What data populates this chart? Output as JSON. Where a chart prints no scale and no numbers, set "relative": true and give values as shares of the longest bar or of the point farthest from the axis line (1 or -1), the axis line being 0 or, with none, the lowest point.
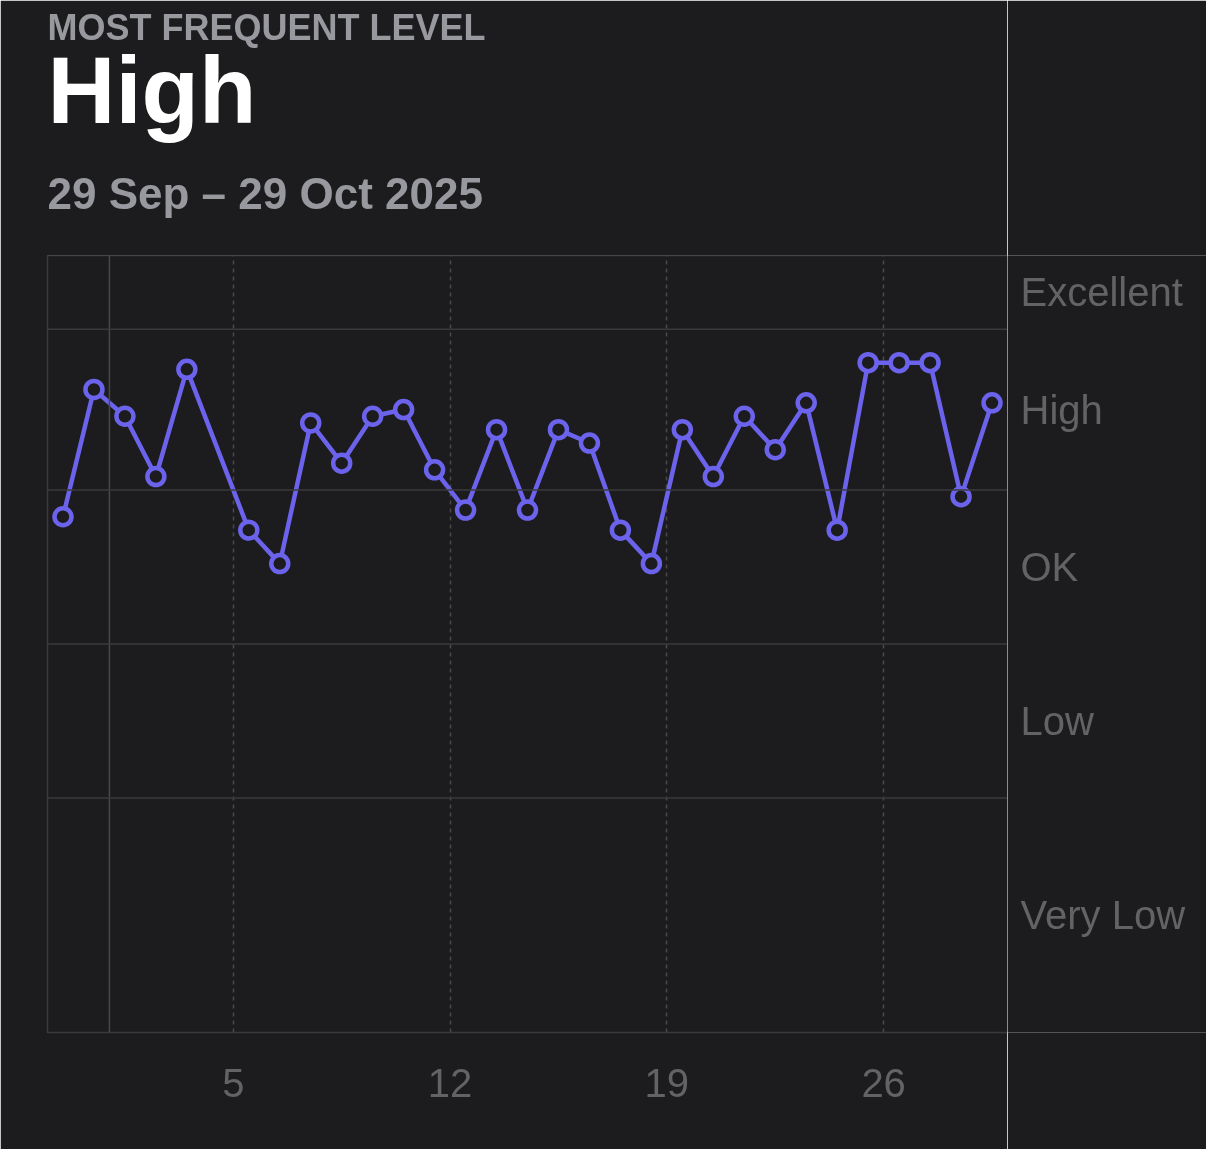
{
  "chart_data": {
    "type": "line",
    "relative": true,
    "title": "MOST FREQUENT LEVEL",
    "subtitle": "29 Sep – 29 Oct 2025",
    "annotations": [
      "High",
      "Excellent",
      "High",
      "OK",
      "Low",
      "Very Low"
    ],
    "x": [
      "2025-09-29T12:00",
      "2025-09-30T12:00",
      "2025-10-01T12:00",
      "2025-10-02T12:00",
      "2025-10-03T12:00",
      "2025-10-05T12:00",
      "2025-10-06T12:00",
      "2025-10-07T12:00",
      "2025-10-08T12:00",
      "2025-10-09T12:00",
      "2025-10-10T12:00",
      "2025-10-11T12:00",
      "2025-10-12T12:00",
      "2025-10-13T12:00",
      "2025-10-14T12:00",
      "2025-10-15T12:00",
      "2025-10-16T12:00",
      "2025-10-17T12:00",
      "2025-10-18T12:00",
      "2025-10-19T12:00",
      "2025-10-20T12:00",
      "2025-10-21T12:00",
      "2025-10-22T12:00",
      "2025-10-23T12:00",
      "2025-10-24T12:00",
      "2025-10-25T12:00",
      "2025-10-26T12:00",
      "2025-10-27T12:00",
      "2025-10-28T12:00",
      "2025-10-29T12:00"
    ],
    "series": [
      {
        "color": "#6c63ec",
        "values": [
          0.77,
          0.96,
          0.92,
          0.83,
          0.99,
          0.75,
          0.7,
          0.91,
          0.85,
          0.92,
          0.93,
          0.84,
          0.78,
          0.9,
          0.78,
          0.9,
          0.88,
          0.75,
          0.7,
          0.9,
          0.83,
          0.92,
          0.87,
          0.94,
          0.75,
          1,
          1,
          1,
          0.8,
          0.94
        ]
      }
    ],
    "xlim": [
      "2025-09-29",
      "2025-10-30"
    ],
    "xticks": [
      {
        "value": "2025-10-05",
        "label": "5"
      },
      {
        "value": "2025-10-12",
        "label": "12"
      },
      {
        "value": "2025-10-19",
        "label": "19"
      },
      {
        "value": "2025-10-26",
        "label": "26"
      }
    ],
    "ref_lines": [
      {
        "axis": "x",
        "value": "2025-10-01",
        "color": "#48484a",
        "line_style": "solid"
      },
      {
        "axis": "y",
        "value": 0.35,
        "color": "#3a3a3c",
        "line_style": "solid"
      },
      {
        "axis": "y",
        "value": 0.58,
        "color": "#3a3a3c",
        "line_style": "solid"
      },
      {
        "axis": "y",
        "value": 0.81,
        "color": "#3a3a3c",
        "line_style": "solid"
      },
      {
        "axis": "y",
        "value": 1.05,
        "color": "#3a3a3c",
        "line_style": "solid"
      },
      {
        "axis": "y",
        "value": 1.16,
        "color": "#3a3a3c",
        "line_style": "solid"
      }
    ],
    "grid": "x",
    "marker": "circle",
    "line_style": "solid"
  }
}
